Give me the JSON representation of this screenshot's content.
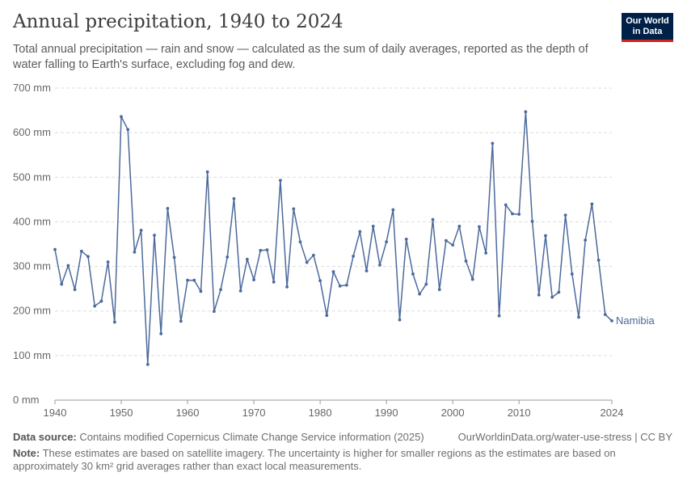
{
  "header": {
    "title": "Annual precipitation, 1940 to 2024",
    "subtitle": "Total annual precipitation — rain and snow — calculated as the sum of daily averages, reported as the depth of water falling to Earth's surface, excluding fog and dew.",
    "logo_line1": "Our World",
    "logo_line2": "in Data"
  },
  "footer": {
    "source_label": "Data source:",
    "source_text": "Contains modified Copernicus Climate Change Service information (2025)",
    "license": "OurWorldinData.org/water-use-stress | CC BY",
    "note_label": "Note:",
    "note_text": "These estimates are based on satellite imagery. The uncertainty is higher for smaller regions as the estimates are based on approximately 30 km² grid averages rather than exact local measurements."
  },
  "colors": {
    "series": "#4c6a9c",
    "grid": "#dddddd",
    "axis": "#666666"
  },
  "chart_data": {
    "type": "line",
    "title": "Annual precipitation, 1940 to 2024",
    "ylabel": "",
    "xlabel": "",
    "ylim": [
      0,
      700
    ],
    "xlim": [
      1940,
      2024
    ],
    "y_ticks": [
      0,
      100,
      200,
      300,
      400,
      500,
      600,
      700
    ],
    "y_tick_labels": [
      "0 mm",
      "100 mm",
      "200 mm",
      "300 mm",
      "400 mm",
      "500 mm",
      "600 mm",
      "700 mm"
    ],
    "x_ticks": [
      1940,
      1950,
      1960,
      1970,
      1980,
      1990,
      2000,
      2010,
      2024
    ],
    "x_tick_labels": [
      "1940",
      "1950",
      "1960",
      "1970",
      "1980",
      "1990",
      "2000",
      "2010",
      "2024"
    ],
    "grid": "horizontal dashed",
    "series": [
      {
        "name": "Namibia",
        "x": [
          1940,
          1941,
          1942,
          1943,
          1944,
          1945,
          1946,
          1947,
          1948,
          1949,
          1950,
          1951,
          1952,
          1953,
          1954,
          1955,
          1956,
          1957,
          1958,
          1959,
          1960,
          1961,
          1962,
          1963,
          1964,
          1965,
          1966,
          1967,
          1968,
          1969,
          1970,
          1971,
          1972,
          1973,
          1974,
          1975,
          1976,
          1977,
          1978,
          1979,
          1980,
          1981,
          1982,
          1983,
          1984,
          1985,
          1986,
          1987,
          1988,
          1989,
          1990,
          1991,
          1992,
          1993,
          1994,
          1995,
          1996,
          1997,
          1998,
          1999,
          2000,
          2001,
          2002,
          2003,
          2004,
          2005,
          2006,
          2007,
          2008,
          2009,
          2010,
          2011,
          2012,
          2013,
          2014,
          2015,
          2016,
          2017,
          2018,
          2019,
          2020,
          2021,
          2022,
          2023,
          2024
        ],
        "values": [
          338,
          260,
          302,
          248,
          334,
          322,
          211,
          222,
          310,
          175,
          636,
          607,
          332,
          381,
          80,
          370,
          149,
          430,
          320,
          177,
          269,
          269,
          244,
          512,
          199,
          248,
          321,
          452,
          245,
          316,
          270,
          336,
          337,
          265,
          493,
          254,
          429,
          355,
          309,
          325,
          268,
          190,
          288,
          256,
          258,
          323,
          378,
          290,
          390,
          303,
          355,
          427,
          180,
          361,
          283,
          238,
          260,
          405,
          248,
          358,
          348,
          390,
          312,
          271,
          389,
          330,
          576,
          189,
          438,
          418,
          417,
          647,
          401,
          236,
          369,
          231,
          242,
          415,
          283,
          186,
          359,
          440,
          314,
          192,
          178
        ]
      }
    ]
  }
}
